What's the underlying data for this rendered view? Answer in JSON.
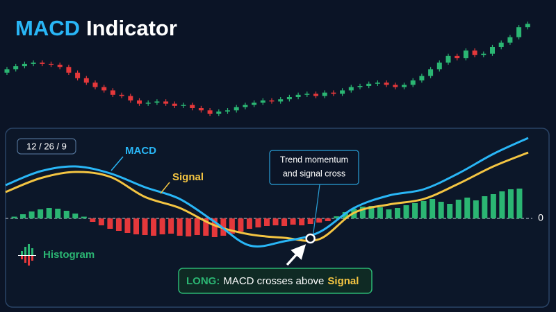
{
  "chart_data": [
    {
      "type": "candlestick",
      "title_highlight": "MACD",
      "title": "Indicator",
      "ylim": [
        0,
        100
      ],
      "up_color": "#2bb673",
      "down_color": "#e5383b",
      "open": [
        47,
        50,
        53,
        55,
        56,
        55,
        54,
        52,
        47,
        42,
        38,
        34,
        31,
        27,
        26,
        22,
        19,
        20,
        21,
        19,
        17,
        18,
        15,
        13,
        10,
        12,
        13,
        16,
        18,
        20,
        22,
        21,
        23,
        25,
        27,
        28,
        26,
        29,
        28,
        31,
        34,
        35,
        37,
        38,
        36,
        34,
        36,
        40,
        44,
        50,
        56,
        62,
        60,
        67,
        63,
        64,
        70,
        74,
        79,
        88
      ],
      "high": [
        52,
        55,
        57,
        58,
        58,
        57,
        56,
        54,
        49,
        44,
        40,
        36,
        33,
        29,
        28,
        24,
        22,
        23,
        23,
        21,
        20,
        20,
        17,
        15,
        14,
        15,
        18,
        20,
        22,
        24,
        24,
        25,
        27,
        29,
        30,
        30,
        31,
        31,
        33,
        36,
        37,
        39,
        40,
        40,
        38,
        38,
        42,
        46,
        52,
        58,
        64,
        64,
        69,
        69,
        66,
        72,
        76,
        81,
        90,
        93
      ],
      "low": [
        45,
        48,
        51,
        53,
        53,
        52,
        50,
        45,
        40,
        36,
        32,
        29,
        25,
        24,
        20,
        17,
        17,
        18,
        17,
        15,
        15,
        13,
        11,
        8,
        8,
        10,
        11,
        14,
        16,
        18,
        19,
        19,
        21,
        23,
        25,
        24,
        24,
        26,
        26,
        29,
        32,
        33,
        35,
        34,
        32,
        32,
        34,
        38,
        42,
        48,
        54,
        58,
        58,
        61,
        61,
        62,
        68,
        72,
        77,
        86
      ],
      "close": [
        50,
        53,
        55,
        56,
        55,
        54,
        52,
        47,
        42,
        38,
        34,
        31,
        27,
        26,
        22,
        19,
        20,
        21,
        19,
        17,
        18,
        15,
        13,
        10,
        12,
        13,
        16,
        18,
        20,
        22,
        21,
        23,
        25,
        27,
        28,
        26,
        29,
        28,
        31,
        34,
        35,
        37,
        38,
        36,
        34,
        36,
        40,
        44,
        50,
        56,
        62,
        60,
        67,
        63,
        64,
        70,
        74,
        79,
        88,
        91
      ]
    },
    {
      "type": "line",
      "params": "12 / 26 / 9",
      "xlim": [
        0,
        60
      ],
      "ylim": [
        -2.5,
        2.5
      ],
      "yticks": [
        0
      ],
      "x": [
        0,
        4,
        8,
        12,
        16,
        20,
        24,
        28,
        32,
        36,
        40,
        44,
        48,
        52,
        56,
        60
      ],
      "series": [
        {
          "name": "MACD",
          "color": "#29b6f6",
          "values": [
            0.96,
            1.36,
            1.5,
            1.3,
            0.9,
            0.56,
            -0.1,
            -0.78,
            -0.66,
            -0.4,
            0.3,
            0.66,
            0.84,
            1.3,
            1.86,
            2.32
          ]
        },
        {
          "name": "Signal",
          "color": "#f4c542",
          "values": [
            0.76,
            1.16,
            1.34,
            1.2,
            0.62,
            0.3,
            -0.2,
            -0.46,
            -0.56,
            -0.6,
            0.16,
            0.4,
            0.56,
            1.0,
            1.5,
            1.9
          ]
        }
      ],
      "histogram": {
        "name": "Histogram",
        "up_color": "#2bb673",
        "down_color": "#e5383b",
        "values": [
          0,
          0.05,
          0.12,
          0.2,
          0.26,
          0.3,
          0.28,
          0.22,
          0.14,
          0.05,
          -0.1,
          -0.2,
          -0.3,
          -0.36,
          -0.42,
          -0.46,
          -0.48,
          -0.5,
          -0.46,
          -0.44,
          -0.5,
          -0.52,
          -0.48,
          -0.5,
          -0.54,
          -0.5,
          -0.44,
          -0.38,
          -0.3,
          -0.26,
          -0.22,
          -0.2,
          -0.22,
          -0.18,
          -0.2,
          -0.16,
          -0.12,
          -0.08,
          0.06,
          0.18,
          0.28,
          0.34,
          0.36,
          0.32,
          0.26,
          0.3,
          0.38,
          0.44,
          0.5,
          0.56,
          0.48,
          0.42,
          0.54,
          0.6,
          0.52,
          0.64,
          0.7,
          0.78,
          0.84,
          0.86
        ]
      },
      "annotation": {
        "lines": [
          "Trend momentum",
          "and signal cross"
        ],
        "x": 35,
        "y": -0.58
      },
      "callout": {
        "label": "LONG:",
        "text": "MACD crosses above",
        "highlight": "Signal"
      }
    }
  ]
}
